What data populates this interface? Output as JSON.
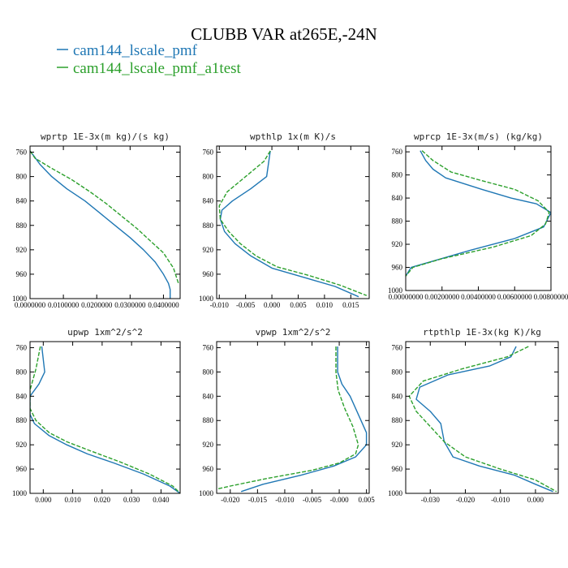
{
  "figure": {
    "title": "CLUBB VAR at265E,-24N",
    "legend": [
      {
        "label": "cam144_lscale_pmf",
        "color": "#1f77b4"
      },
      {
        "label": "cam144_lscale_pmf_a1test",
        "color": "#2ca02c"
      }
    ]
  },
  "chart_data": [
    {
      "type": "line",
      "title": "wprtp  1E-3x(m kg)/(s kg)",
      "xlim": [
        0.0,
        0.045
      ],
      "xticks": [
        "0.0000000",
        "0.0100000",
        "0.0200000",
        "0.0300000",
        "0.0400000"
      ],
      "xtick_values": [
        0.0,
        0.01,
        0.02,
        0.03,
        0.04
      ],
      "ylim": [
        750,
        1000
      ],
      "yticks": [
        760,
        800,
        840,
        880,
        920,
        960,
        1000
      ],
      "series": [
        {
          "name": "cam144_lscale_pmf",
          "color": "#1f77b4",
          "dash": "",
          "x": [
            0.0,
            0.001,
            0.003,
            0.0065,
            0.011,
            0.0165,
            0.021,
            0.0255,
            0.03,
            0.034,
            0.0375,
            0.04,
            0.0415,
            0.042,
            0.042
          ],
          "y": [
            758,
            765,
            780,
            800,
            820,
            840,
            860,
            880,
            900,
            920,
            940,
            960,
            975,
            985,
            1000
          ]
        },
        {
          "name": "cam144_lscale_pmf_a1test",
          "color": "#2ca02c",
          "dash": "5,2",
          "x": [
            0.0,
            0.0015,
            0.006,
            0.0125,
            0.018,
            0.023,
            0.0275,
            0.032,
            0.036,
            0.04,
            0.043,
            0.0445
          ],
          "y": [
            758,
            770,
            785,
            805,
            825,
            845,
            865,
            885,
            905,
            925,
            950,
            975
          ]
        }
      ]
    },
    {
      "type": "line",
      "title": "wpthlp  1x(m K)/s",
      "xlim": [
        -0.0105,
        0.0185
      ],
      "xticks": [
        "-0.010",
        "-0.005",
        "0.000",
        "0.005",
        "0.010",
        "0.015"
      ],
      "xtick_values": [
        -0.01,
        -0.005,
        0.0,
        0.005,
        0.01,
        0.015
      ],
      "ylim": [
        750,
        1000
      ],
      "yticks": [
        760,
        800,
        840,
        880,
        920,
        960,
        1000
      ],
      "series": [
        {
          "name": "cam144_lscale_pmf",
          "color": "#1f77b4",
          "dash": "",
          "x": [
            -0.0003,
            -0.0005,
            -0.001,
            -0.004,
            -0.0075,
            -0.0095,
            -0.0098,
            -0.009,
            -0.007,
            -0.004,
            0.0,
            0.006,
            0.012,
            0.0165
          ],
          "y": [
            758,
            770,
            800,
            820,
            840,
            855,
            870,
            890,
            910,
            930,
            950,
            965,
            980,
            997
          ]
        },
        {
          "name": "cam144_lscale_pmf_a1test",
          "color": "#2ca02c",
          "dash": "5,2",
          "x": [
            -0.0003,
            -0.0015,
            -0.005,
            -0.0085,
            -0.01,
            -0.0098,
            -0.0082,
            -0.006,
            -0.003,
            0.001,
            0.007,
            0.013,
            0.018
          ],
          "y": [
            758,
            775,
            800,
            825,
            848,
            870,
            890,
            910,
            930,
            948,
            962,
            978,
            995
          ]
        }
      ]
    },
    {
      "type": "line",
      "title": "wprcp  1E-3x(m/s) (kg/kg)",
      "xlim": [
        0.0,
        0.008
      ],
      "xticks": [
        "0.00000000",
        "0.00200000",
        "0.00400000",
        "0.00600000",
        "0.00800000"
      ],
      "xtick_values": [
        0.0,
        0.002,
        0.004,
        0.006,
        0.008
      ],
      "ylim": [
        750,
        1000
      ],
      "yticks": [
        760,
        800,
        840,
        880,
        920,
        960,
        1000
      ],
      "series": [
        {
          "name": "cam144_lscale_pmf",
          "color": "#1f77b4",
          "dash": "",
          "x": [
            0.0008,
            0.0011,
            0.0015,
            0.0022,
            0.0042,
            0.0058,
            0.0072,
            0.008,
            0.0076,
            0.006,
            0.0036,
            0.0014,
            0.0003,
            0.0
          ],
          "y": [
            758,
            775,
            790,
            805,
            825,
            840,
            850,
            865,
            890,
            910,
            930,
            950,
            960,
            975
          ]
        },
        {
          "name": "cam144_lscale_pmf_a1test",
          "color": "#2ca02c",
          "dash": "5,2",
          "x": [
            0.0009,
            0.0015,
            0.0025,
            0.0042,
            0.006,
            0.0073,
            0.0079,
            0.0077,
            0.0069,
            0.0048,
            0.002,
            0.0004,
            0.0
          ],
          "y": [
            758,
            775,
            795,
            810,
            825,
            845,
            865,
            885,
            905,
            925,
            945,
            960,
            975
          ]
        }
      ]
    },
    {
      "type": "line",
      "title": "upwp  1xm^2/s^2",
      "xlim": [
        -0.0045,
        0.0465
      ],
      "xticks": [
        "0.000",
        "0.010",
        "0.020",
        "0.030",
        "0.040"
      ],
      "xtick_values": [
        0.0,
        0.01,
        0.02,
        0.03,
        0.04
      ],
      "ylim": [
        750,
        1000
      ],
      "yticks": [
        760,
        800,
        840,
        880,
        920,
        960,
        1000
      ],
      "series": [
        {
          "name": "cam144_lscale_pmf",
          "color": "#1f77b4",
          "dash": "",
          "x": [
            -0.0005,
            0.0005,
            -0.0015,
            -0.0045,
            -0.0045,
            -0.003,
            0.002,
            0.008,
            0.015,
            0.024,
            0.034,
            0.043,
            0.0465
          ],
          "y": [
            758,
            800,
            820,
            840,
            870,
            885,
            905,
            920,
            935,
            950,
            968,
            988,
            1000
          ]
        },
        {
          "name": "cam144_lscale_pmf_a1test",
          "color": "#2ca02c",
          "dash": "5,2",
          "x": [
            -0.001,
            -0.0025,
            -0.0045,
            -0.0045,
            -0.0025,
            0.002,
            0.008,
            0.016,
            0.026,
            0.036,
            0.044,
            0.0465
          ],
          "y": [
            758,
            795,
            830,
            860,
            880,
            900,
            915,
            930,
            948,
            968,
            988,
            1000
          ]
        }
      ]
    },
    {
      "type": "line",
      "title": "vpwp  1xm^2/s^2",
      "xlim": [
        -0.0225,
        0.0055
      ],
      "xticks": [
        "-0.020",
        "-0.015",
        "-0.010",
        "-0.005",
        "-0.000",
        "0.005"
      ],
      "xtick_values": [
        -0.02,
        -0.015,
        -0.01,
        -0.005,
        0.0,
        0.005
      ],
      "ylim": [
        750,
        1000
      ],
      "yticks": [
        760,
        800,
        840,
        880,
        920,
        960,
        1000
      ],
      "series": [
        {
          "name": "cam144_lscale_pmf",
          "color": "#1f77b4",
          "dash": "",
          "x": [
            -0.0003,
            -0.0003,
            0.0005,
            0.002,
            0.0035,
            0.005,
            0.005,
            0.003,
            -0.001,
            -0.007,
            -0.014,
            -0.018
          ],
          "y": [
            758,
            800,
            820,
            840,
            870,
            900,
            920,
            940,
            955,
            970,
            985,
            997
          ]
        },
        {
          "name": "cam144_lscale_pmf_a1test",
          "color": "#2ca02c",
          "dash": "5,2",
          "x": [
            -0.0006,
            -0.0006,
            -0.0002,
            0.001,
            0.0025,
            0.0035,
            0.003,
            0.0,
            -0.005,
            -0.013,
            -0.02,
            -0.0225
          ],
          "y": [
            758,
            800,
            830,
            860,
            890,
            920,
            935,
            950,
            962,
            975,
            988,
            993
          ]
        }
      ]
    },
    {
      "type": "line",
      "title": "rtpthlp  1E-3x(kg K)/kg",
      "xlim": [
        -0.037,
        0.0065
      ],
      "xticks": [
        "-0.030",
        "-0.020",
        "-0.010",
        "0.000"
      ],
      "xtick_values": [
        -0.03,
        -0.02,
        -0.01,
        0.0
      ],
      "ylim": [
        750,
        1000
      ],
      "yticks": [
        760,
        800,
        840,
        880,
        920,
        960,
        1000
      ],
      "series": [
        {
          "name": "cam144_lscale_pmf",
          "color": "#1f77b4",
          "dash": "",
          "x": [
            -0.0055,
            -0.007,
            -0.013,
            -0.025,
            -0.033,
            -0.034,
            -0.03,
            -0.027,
            -0.026,
            -0.0235,
            -0.016,
            -0.006,
            0.0,
            0.005
          ],
          "y": [
            758,
            775,
            790,
            805,
            825,
            845,
            865,
            885,
            915,
            940,
            955,
            970,
            985,
            997
          ]
        },
        {
          "name": "cam144_lscale_pmf_a1test",
          "color": "#2ca02c",
          "dash": "5,2",
          "x": [
            -0.002,
            -0.008,
            -0.021,
            -0.032,
            -0.036,
            -0.034,
            -0.03,
            -0.026,
            -0.02,
            -0.01,
            0.0,
            0.006
          ],
          "y": [
            758,
            775,
            795,
            815,
            840,
            865,
            890,
            915,
            940,
            960,
            978,
            997
          ]
        }
      ]
    }
  ]
}
